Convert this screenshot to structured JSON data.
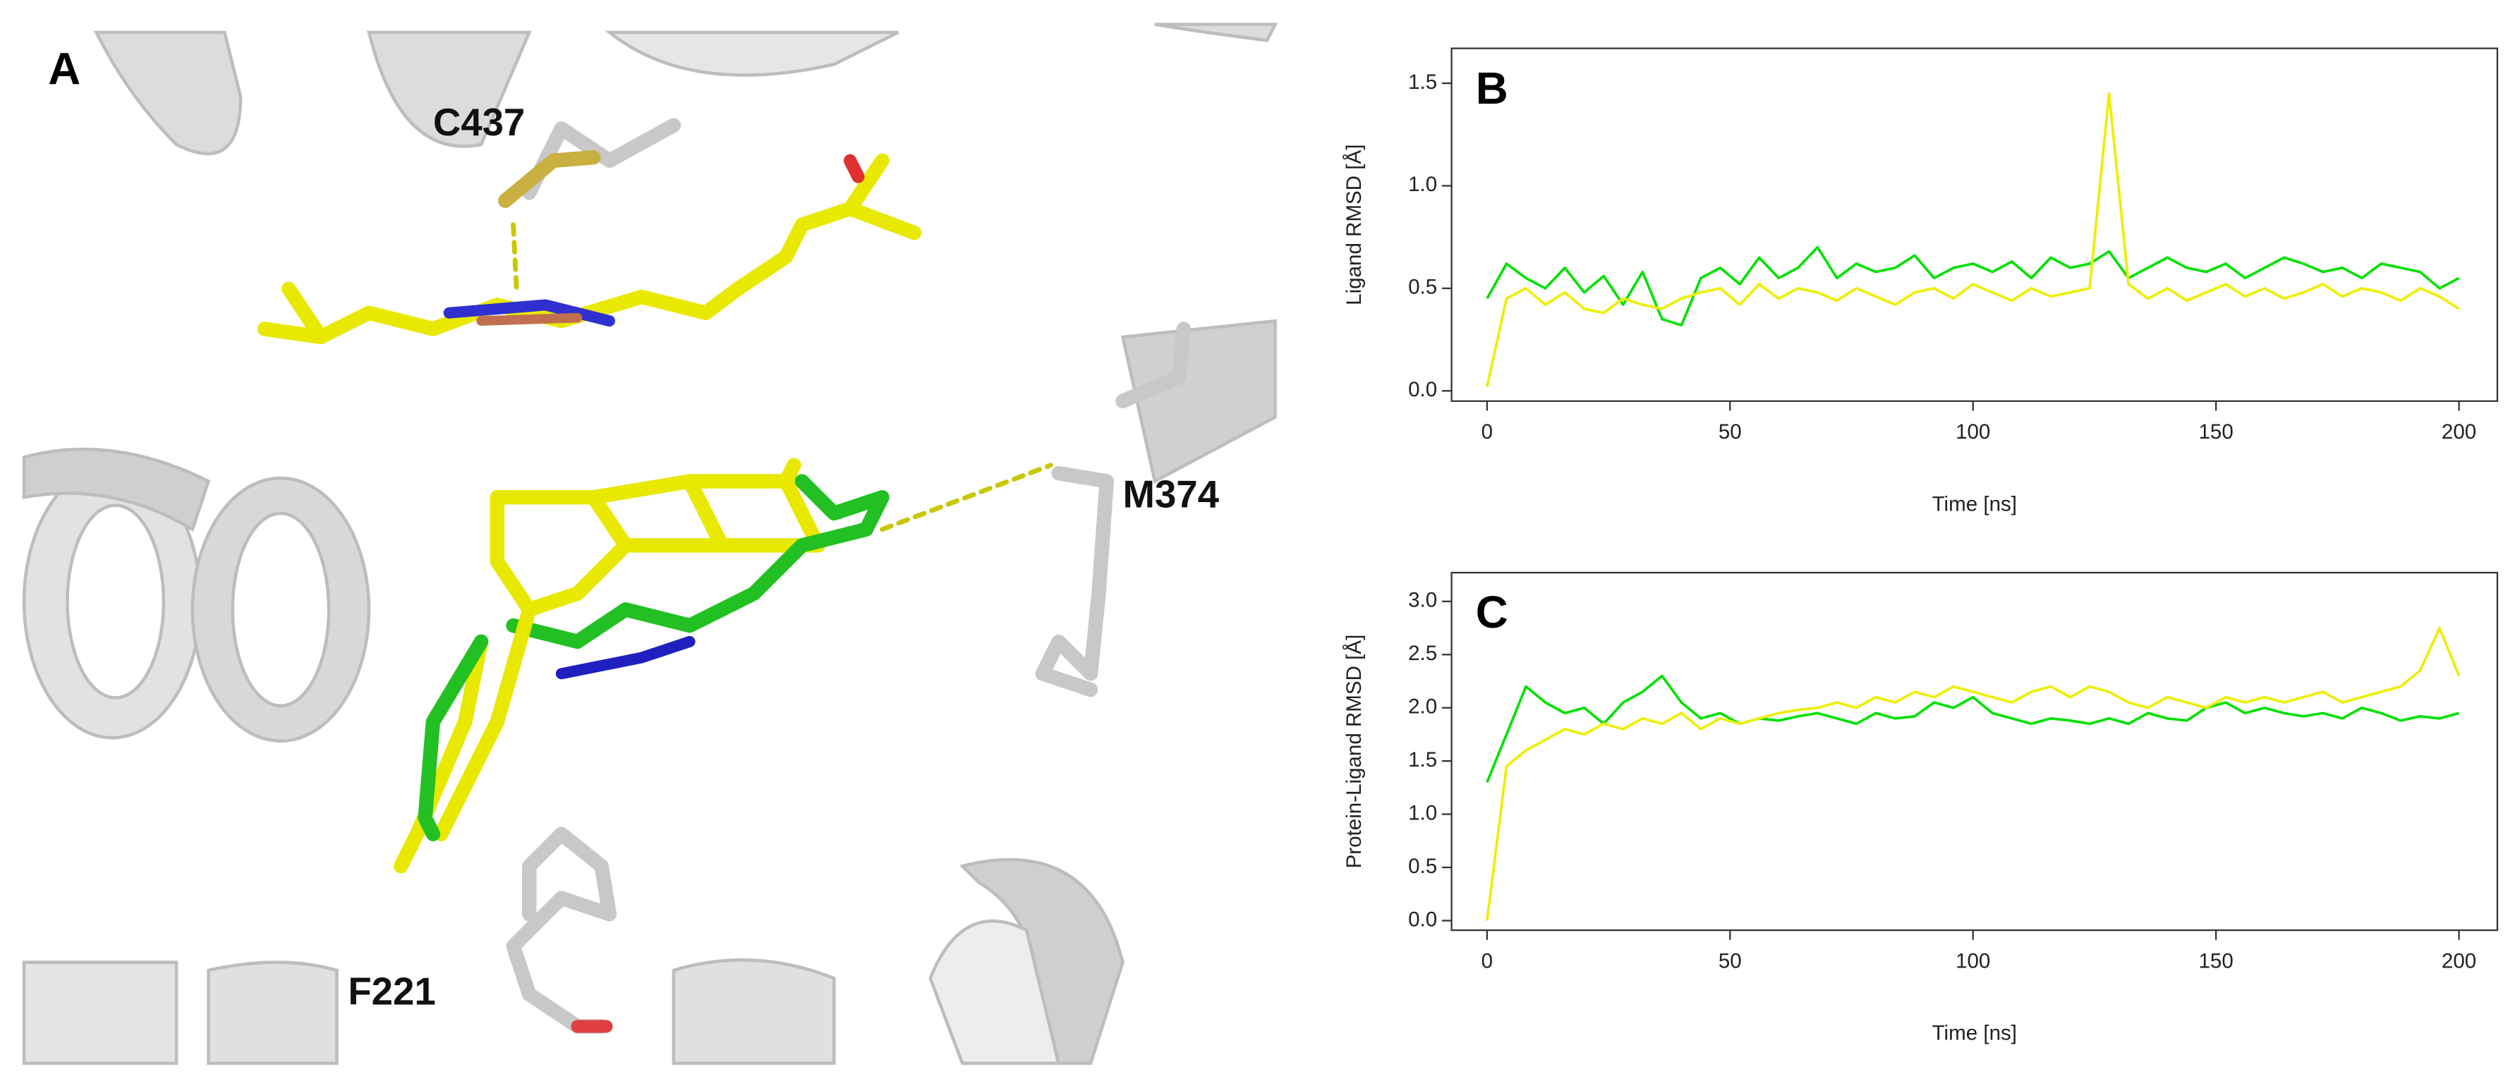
{
  "panel_a": {
    "label": "A",
    "residues": [
      "C437",
      "M374",
      "F221"
    ]
  },
  "chart_data": [
    {
      "type": "line",
      "panel_label": "B",
      "x_label": "Time [ns]",
      "y_label": "Ligand RMSD [Å]",
      "x": [
        0,
        4,
        8,
        12,
        16,
        20,
        24,
        28,
        32,
        36,
        40,
        44,
        48,
        52,
        56,
        60,
        64,
        68,
        72,
        76,
        80,
        84,
        88,
        92,
        96,
        100,
        104,
        108,
        112,
        116,
        120,
        124,
        128,
        132,
        136,
        140,
        144,
        148,
        152,
        156,
        160,
        164,
        168,
        172,
        176,
        180,
        184,
        188,
        192,
        196,
        200
      ],
      "xlim": [
        -7.3,
        207.9
      ],
      "xticks": [
        0,
        50,
        100,
        150,
        200
      ],
      "ylim": [
        -0.05,
        1.67
      ],
      "yticks": [
        {
          "value": 0,
          "label": "0.0"
        },
        0.5,
        {
          "value": 1,
          "label": "1.0"
        },
        1.5
      ],
      "series": [
        {
          "color": "#00e000",
          "values": [
            0.45,
            0.62,
            0.55,
            0.5,
            0.6,
            0.48,
            0.56,
            0.42,
            0.58,
            0.35,
            0.32,
            0.55,
            0.6,
            0.52,
            0.65,
            0.55,
            0.6,
            0.7,
            0.55,
            0.62,
            0.58,
            0.6,
            0.66,
            0.55,
            0.6,
            0.62,
            0.58,
            0.63,
            0.55,
            0.65,
            0.6,
            0.62,
            0.68,
            0.55,
            0.6,
            0.65,
            0.6,
            0.58,
            0.62,
            0.55,
            0.6,
            0.65,
            0.62,
            0.58,
            0.6,
            0.55,
            0.62,
            0.6,
            0.58,
            0.5,
            0.55
          ]
        },
        {
          "color": "#eeee00",
          "values": [
            0.02,
            0.45,
            0.5,
            0.42,
            0.48,
            0.4,
            0.38,
            0.45,
            0.42,
            0.4,
            0.45,
            0.48,
            0.5,
            0.42,
            0.52,
            0.45,
            0.5,
            0.48,
            0.44,
            0.5,
            0.46,
            0.42,
            0.48,
            0.5,
            0.45,
            0.52,
            0.48,
            0.44,
            0.5,
            0.46,
            0.48,
            0.5,
            1.45,
            0.52,
            0.45,
            0.5,
            0.44,
            0.48,
            0.52,
            0.46,
            0.5,
            0.45,
            0.48,
            0.52,
            0.46,
            0.5,
            0.48,
            0.44,
            0.5,
            0.46,
            0.4
          ]
        }
      ]
    },
    {
      "type": "line",
      "panel_label": "C",
      "x_label": "Time [ns]",
      "y_label": "Protein-Ligand RMSD [Å]",
      "x": [
        0,
        4,
        8,
        12,
        16,
        20,
        24,
        28,
        32,
        36,
        40,
        44,
        48,
        52,
        56,
        60,
        64,
        68,
        72,
        76,
        80,
        84,
        88,
        92,
        96,
        100,
        104,
        108,
        112,
        116,
        120,
        124,
        128,
        132,
        136,
        140,
        144,
        148,
        152,
        156,
        160,
        164,
        168,
        172,
        176,
        180,
        184,
        188,
        192,
        196,
        200
      ],
      "xlim": [
        -7.3,
        207.9
      ],
      "xticks": [
        0,
        50,
        100,
        150,
        200
      ],
      "ylim": [
        -0.09,
        3.27
      ],
      "yticks": [
        {
          "value": 0,
          "label": "0.0"
        },
        0.5,
        {
          "value": 1,
          "label": "1.0"
        },
        1.5,
        {
          "value": 2,
          "label": "2.0"
        },
        2.5,
        {
          "value": 3,
          "label": "3.0"
        }
      ],
      "series": [
        {
          "color": "#00e000",
          "values": [
            1.3,
            1.75,
            2.2,
            2.05,
            1.95,
            2.0,
            1.85,
            2.05,
            2.15,
            2.3,
            2.05,
            1.9,
            1.95,
            1.85,
            1.9,
            1.88,
            1.92,
            1.95,
            1.9,
            1.85,
            1.95,
            1.9,
            1.92,
            2.05,
            2.0,
            2.1,
            1.95,
            1.9,
            1.85,
            1.9,
            1.88,
            1.85,
            1.9,
            1.85,
            1.95,
            1.9,
            1.88,
            2.0,
            2.05,
            1.95,
            2.0,
            1.95,
            1.92,
            1.95,
            1.9,
            2.0,
            1.95,
            1.88,
            1.92,
            1.9,
            1.95
          ]
        },
        {
          "color": "#eeee00",
          "values": [
            0.0,
            1.45,
            1.6,
            1.7,
            1.8,
            1.75,
            1.85,
            1.8,
            1.9,
            1.85,
            1.95,
            1.8,
            1.9,
            1.85,
            1.9,
            1.95,
            1.98,
            2.0,
            2.05,
            2.0,
            2.1,
            2.05,
            2.15,
            2.1,
            2.2,
            2.15,
            2.1,
            2.05,
            2.15,
            2.2,
            2.1,
            2.2,
            2.15,
            2.05,
            2.0,
            2.1,
            2.05,
            2.0,
            2.1,
            2.05,
            2.1,
            2.05,
            2.1,
            2.15,
            2.05,
            2.1,
            2.15,
            2.2,
            2.35,
            2.75,
            2.3
          ]
        }
      ]
    }
  ]
}
